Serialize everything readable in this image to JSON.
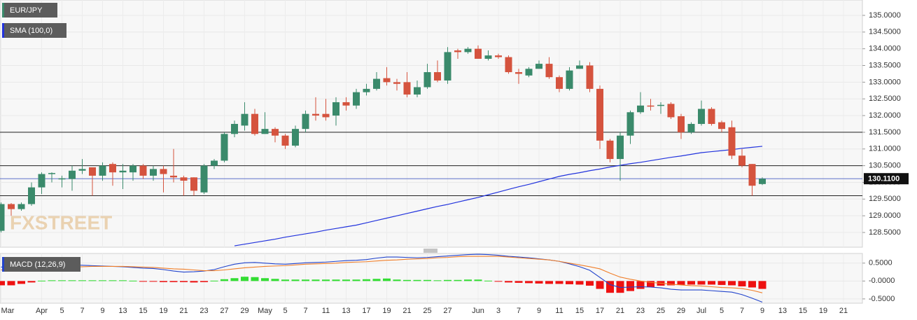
{
  "chart_data": [
    {
      "type": "candlestick",
      "title": "EUR/JPY",
      "watermark": "FXSTREET",
      "categories": [
        "Mar",
        null,
        null,
        null,
        "Apr",
        null,
        "5",
        null,
        "7",
        null,
        "9",
        null,
        "13",
        null,
        "15",
        null,
        "19",
        null,
        "21",
        null,
        "23",
        null,
        "27",
        null,
        "29",
        null,
        "May",
        null,
        "5",
        null,
        "7",
        null,
        "11",
        null,
        "13",
        null,
        "17",
        null,
        "19",
        null,
        "21",
        null,
        "25",
        null,
        "27",
        null,
        null,
        "Jun",
        null,
        "3",
        null,
        "7",
        null,
        "9",
        null,
        "11",
        null,
        "15",
        null,
        "17",
        null,
        "21",
        null,
        "23",
        null,
        "25",
        null,
        "29",
        null,
        "Jul",
        null,
        "5",
        null,
        "7",
        null,
        "9",
        null,
        "13",
        null,
        "15",
        null,
        "19",
        null,
        "21",
        null
      ],
      "open": [
        128.55,
        129.35,
        129.2,
        129.35,
        129.85,
        130.25,
        130.1,
        130.1,
        130.35,
        130.45,
        130.2,
        130.55,
        130.3,
        130.3,
        130.5,
        130.2,
        130.4,
        130.2,
        130.15,
        130.15,
        129.7,
        130.5,
        130.65,
        131.45,
        131.7,
        132.05,
        131.45,
        131.6,
        131.4,
        131.1,
        131.6,
        132.05,
        132.05,
        132.0,
        132.4,
        132.3,
        132.7,
        132.8,
        133.12,
        133.0,
        133.0,
        132.63,
        132.85,
        133.3,
        133.05,
        133.95,
        133.9,
        134.0,
        133.7,
        133.8,
        133.75,
        133.3,
        133.2,
        133.4,
        133.55,
        133.15,
        132.8,
        133.4,
        133.5,
        132.8,
        131.25,
        130.7,
        131.4,
        132.1,
        132.3,
        132.3,
        132.35,
        131.98,
        131.5,
        131.75,
        132.2,
        131.8,
        131.65,
        130.8,
        130.55,
        129.95,
        null,
        null,
        null,
        null,
        null,
        null,
        null,
        null,
        null
      ],
      "high": [
        129.4,
        129.38,
        129.4,
        130.0,
        130.3,
        130.3,
        130.2,
        130.5,
        130.7,
        130.45,
        130.6,
        130.6,
        130.55,
        130.55,
        130.55,
        130.5,
        130.5,
        131.0,
        130.2,
        130.15,
        130.55,
        130.7,
        131.5,
        131.85,
        132.4,
        132.2,
        132.1,
        131.65,
        131.45,
        131.7,
        132.15,
        132.55,
        132.5,
        132.55,
        132.55,
        132.8,
        132.95,
        133.3,
        133.45,
        133.1,
        133.3,
        133.05,
        133.55,
        133.65,
        134.05,
        134.0,
        134.05,
        134.1,
        133.95,
        133.85,
        133.8,
        133.4,
        133.45,
        133.65,
        133.75,
        133.2,
        133.45,
        133.65,
        133.6,
        132.9,
        131.3,
        131.5,
        132.15,
        132.7,
        132.5,
        132.4,
        132.4,
        132.05,
        131.8,
        132.45,
        132.25,
        131.85,
        131.85,
        131.0,
        130.55,
        130.15,
        null,
        null,
        null,
        null,
        null,
        null,
        null,
        null,
        null
      ],
      "low": [
        128.5,
        129.0,
        129.15,
        129.3,
        129.65,
        130.0,
        129.85,
        129.75,
        130.25,
        129.6,
        130.05,
        129.9,
        129.8,
        130.05,
        130.1,
        130.05,
        129.7,
        130.0,
        129.6,
        129.6,
        129.65,
        130.4,
        130.6,
        131.35,
        131.55,
        131.4,
        131.45,
        131.2,
        131.0,
        131.05,
        131.5,
        131.85,
        131.85,
        131.7,
        132.15,
        132.2,
        132.6,
        132.75,
        132.9,
        132.75,
        132.55,
        132.55,
        132.8,
        133.0,
        132.95,
        133.7,
        133.85,
        133.7,
        133.65,
        133.7,
        133.25,
        132.95,
        133.15,
        133.4,
        133.1,
        132.7,
        132.75,
        133.4,
        132.7,
        131.0,
        130.6,
        130.05,
        131.15,
        132.05,
        132.15,
        132.05,
        131.9,
        131.3,
        131.45,
        131.7,
        131.7,
        131.5,
        130.7,
        130.45,
        129.6,
        129.92,
        null,
        null,
        null,
        null,
        null,
        null,
        null,
        null,
        null
      ],
      "close": [
        129.35,
        129.2,
        129.35,
        129.85,
        130.25,
        130.28,
        130.12,
        130.35,
        130.4,
        130.2,
        130.5,
        130.3,
        130.35,
        130.5,
        130.2,
        130.4,
        130.25,
        130.15,
        130.05,
        129.75,
        130.5,
        130.65,
        131.45,
        131.75,
        132.05,
        131.45,
        131.6,
        131.4,
        131.1,
        131.6,
        132.05,
        132.0,
        131.95,
        132.4,
        132.3,
        132.7,
        132.8,
        133.1,
        133.0,
        132.95,
        132.63,
        132.85,
        133.3,
        133.05,
        133.9,
        133.9,
        134.0,
        133.7,
        133.8,
        133.75,
        133.3,
        133.25,
        133.4,
        133.55,
        133.15,
        132.8,
        133.35,
        133.5,
        132.8,
        131.25,
        130.7,
        131.4,
        132.1,
        132.3,
        132.28,
        132.32,
        131.95,
        131.5,
        131.75,
        132.2,
        131.75,
        131.6,
        130.8,
        130.5,
        129.9,
        130.11,
        null,
        null,
        null,
        null,
        null,
        null,
        null,
        null,
        null
      ],
      "up_color": "#3a8a6b",
      "down_color": "#d5533e",
      "series": [
        {
          "name": "SMA (100,0)",
          "color": "#2233dd",
          "values": [
            null,
            null,
            null,
            null,
            null,
            null,
            null,
            null,
            null,
            null,
            null,
            null,
            null,
            null,
            null,
            null,
            null,
            null,
            null,
            null,
            null,
            null,
            null,
            128.1,
            128.15,
            128.2,
            128.25,
            128.3,
            128.36,
            128.41,
            128.46,
            128.51,
            128.57,
            128.62,
            128.67,
            128.72,
            128.79,
            128.86,
            128.93,
            129.0,
            129.07,
            129.14,
            129.21,
            129.28,
            129.34,
            129.41,
            129.48,
            129.55,
            129.63,
            129.71,
            129.79,
            129.87,
            129.94,
            130.02,
            130.1,
            130.18,
            130.24,
            130.29,
            130.35,
            130.4,
            130.46,
            130.51,
            130.56,
            130.6,
            130.65,
            130.7,
            130.75,
            130.79,
            130.84,
            130.89,
            130.92,
            130.95,
            130.98,
            131.02,
            131.05,
            131.08,
            null,
            null,
            null,
            null,
            null,
            null,
            null,
            null,
            null
          ]
        }
      ],
      "hlines": [
        131.5,
        130.5,
        129.6
      ],
      "last_price": {
        "value": 130.11,
        "label": "130.1100"
      },
      "ylim": [
        128.06,
        135.46
      ],
      "yticks": [
        {
          "value": 135,
          "label": "135.0000"
        },
        {
          "value": 134.5,
          "label": "134.5000"
        },
        {
          "value": 134,
          "label": "134.0000"
        },
        {
          "value": 133.5,
          "label": "133.5000"
        },
        {
          "value": 133,
          "label": "133.0000"
        },
        {
          "value": 132.5,
          "label": "132.5000"
        },
        {
          "value": 132,
          "label": "132.0000"
        },
        {
          "value": 131.5,
          "label": "131.5000"
        },
        {
          "value": 131,
          "label": "131.0000"
        },
        {
          "value": 130.5,
          "label": "130.5000"
        },
        {
          "value": 130,
          "label": "130.0000"
        },
        {
          "value": 129.5,
          "label": "129.5000"
        },
        {
          "value": 129,
          "label": "129.0000"
        },
        {
          "value": 128.5,
          "label": "128.5000"
        }
      ],
      "grid": true
    },
    {
      "type": "macd",
      "title": "MACD (12,26,9)",
      "series": [
        {
          "color": "#2244cc",
          "values": [
            0.39,
            0.4,
            0.41,
            0.42,
            0.43,
            0.44,
            0.45,
            0.45,
            0.44,
            0.43,
            0.42,
            0.41,
            0.4,
            0.38,
            0.36,
            0.35,
            0.32,
            0.28,
            0.25,
            0.26,
            0.28,
            0.32,
            0.4,
            0.47,
            0.51,
            0.52,
            0.5,
            0.48,
            0.47,
            0.49,
            0.51,
            0.52,
            0.53,
            0.55,
            0.57,
            0.58,
            0.6,
            0.64,
            0.67,
            0.67,
            0.66,
            0.65,
            0.66,
            0.68,
            0.7,
            0.72,
            0.74,
            0.75,
            0.74,
            0.72,
            0.69,
            0.67,
            0.65,
            0.62,
            0.59,
            0.55,
            0.48,
            0.4,
            0.3,
            0.1,
            -0.1,
            -0.18,
            -0.17,
            -0.16,
            -0.17,
            -0.19,
            -0.23,
            -0.25,
            -0.25,
            -0.25,
            -0.27,
            -0.29,
            -0.31,
            -0.38,
            -0.48,
            -0.59,
            null,
            null,
            null,
            null,
            null,
            null,
            null,
            null,
            null
          ]
        },
        {
          "color": "#f07f2a",
          "values": [
            0.31,
            0.32,
            0.33,
            0.35,
            0.36,
            0.37,
            0.38,
            0.39,
            0.4,
            0.41,
            0.41,
            0.41,
            0.41,
            0.4,
            0.39,
            0.38,
            0.36,
            0.34,
            0.33,
            0.31,
            0.29,
            0.29,
            0.31,
            0.34,
            0.37,
            0.39,
            0.41,
            0.42,
            0.43,
            0.45,
            0.47,
            0.48,
            0.49,
            0.5,
            0.52,
            0.53,
            0.54,
            0.56,
            0.58,
            0.59,
            0.61,
            0.62,
            0.63,
            0.65,
            0.66,
            0.68,
            0.69,
            0.69,
            0.69,
            0.69,
            0.67,
            0.65,
            0.63,
            0.61,
            0.59,
            0.55,
            0.5,
            0.45,
            0.4,
            0.34,
            0.22,
            0.11,
            0.05,
            0.0,
            -0.04,
            -0.06,
            -0.09,
            -0.11,
            -0.13,
            -0.14,
            -0.16,
            -0.18,
            -0.19,
            -0.21,
            -0.26,
            -0.33,
            null,
            null,
            null,
            null,
            null,
            null,
            null,
            null,
            null
          ]
        }
      ],
      "histogram": [
        -0.12,
        -0.12,
        -0.08,
        -0.04,
        0.01,
        0.02,
        0.02,
        0.02,
        0.02,
        0.02,
        0.02,
        0.02,
        0.02,
        0.01,
        -0.02,
        -0.02,
        -0.03,
        -0.03,
        -0.03,
        -0.04,
        -0.03,
        0.01,
        0.05,
        0.08,
        0.12,
        0.11,
        0.08,
        0.06,
        0.04,
        0.04,
        0.04,
        0.04,
        0.04,
        0.04,
        0.04,
        0.04,
        0.05,
        0.06,
        0.07,
        0.04,
        0.03,
        0.03,
        0.03,
        0.02,
        0.03,
        0.03,
        0.04,
        0.04,
        0.01,
        -0.01,
        -0.04,
        -0.05,
        -0.06,
        -0.07,
        -0.08,
        -0.08,
        -0.09,
        -0.1,
        -0.13,
        -0.22,
        -0.33,
        -0.33,
        -0.28,
        -0.22,
        -0.17,
        -0.13,
        -0.12,
        -0.11,
        -0.1,
        -0.1,
        -0.1,
        -0.11,
        -0.12,
        -0.15,
        -0.18,
        -0.22,
        null,
        null,
        null,
        null,
        null,
        null,
        null,
        null,
        null
      ],
      "positive_color": "#33dd33",
      "negative_color": "#ee1111",
      "ylim": [
        -0.62,
        0.77
      ],
      "yticks": [
        {
          "value": 0.5,
          "label": "0.5000"
        },
        {
          "value": 0,
          "label": "-0.0000"
        },
        {
          "value": -0.5,
          "label": "-0.5000"
        }
      ],
      "grid": true
    }
  ]
}
